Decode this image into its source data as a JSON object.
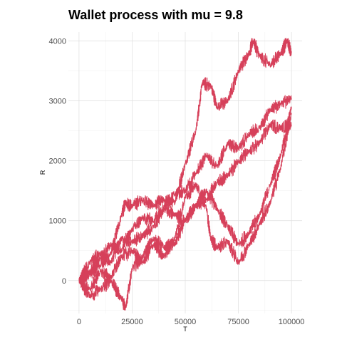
{
  "chart_data": {
    "type": "line",
    "title": "Wallet process with mu =  9.8",
    "xlabel": "T",
    "ylabel": "R",
    "xlim": [
      -5000,
      105000
    ],
    "ylim": [
      -550,
      4150
    ],
    "x_ticks": [
      0,
      25000,
      50000,
      75000,
      100000
    ],
    "x_tick_labels": [
      "0",
      "25000",
      "50000",
      "75000",
      "100000"
    ],
    "y_ticks": [
      0,
      1000,
      2000,
      3000,
      4000
    ],
    "y_tick_labels": [
      "0",
      "1000",
      "2000",
      "3000",
      "4000"
    ],
    "grid": true,
    "legend": "none",
    "line_color": "#d6405a",
    "series": [
      {
        "x": [
          0,
          5000,
          10000,
          15000,
          20000,
          22000,
          25000,
          30000,
          35000,
          40000,
          45000,
          50000,
          55000,
          58000,
          62000,
          65000,
          70000,
          75000,
          80000,
          82000,
          85000,
          90000,
          95000,
          98000,
          100000
        ],
        "values": [
          0,
          100,
          250,
          450,
          1100,
          1300,
          1250,
          1350,
          1250,
          1350,
          1300,
          1950,
          2500,
          3300,
          3250,
          2900,
          3000,
          3500,
          3800,
          4000,
          3750,
          3600,
          3800,
          4000,
          3800
        ]
      },
      {
        "x": [
          0,
          5000,
          10000,
          15000,
          20000,
          22000,
          25000,
          30000,
          35000,
          40000,
          45000,
          50000,
          55000,
          60000,
          65000,
          70000,
          75000,
          80000,
          85000,
          90000,
          95000,
          100000
        ],
        "values": [
          0,
          -250,
          -150,
          0,
          -300,
          -450,
          200,
          400,
          700,
          550,
          600,
          1000,
          1250,
          1500,
          1200,
          900,
          600,
          800,
          1100,
          1600,
          2100,
          2900
        ]
      },
      {
        "x": [
          0,
          5000,
          10000,
          15000,
          20000,
          25000,
          30000,
          35000,
          40000,
          45000,
          50000,
          55000,
          60000,
          62000,
          65000,
          70000,
          75000,
          80000,
          85000,
          90000,
          95000,
          100000
        ],
        "values": [
          0,
          -150,
          150,
          50,
          400,
          500,
          300,
          600,
          400,
          700,
          1400,
          1600,
          1200,
          700,
          550,
          650,
          300,
          600,
          950,
          1300,
          1900,
          2800
        ]
      },
      {
        "x": [
          0,
          5000,
          10000,
          15000,
          20000,
          25000,
          30000,
          35000,
          40000,
          45000,
          50000,
          55000,
          60000,
          65000,
          70000,
          75000,
          80000,
          85000,
          90000,
          95000,
          100000
        ],
        "values": [
          0,
          300,
          450,
          300,
          700,
          650,
          750,
          900,
          1200,
          1100,
          1000,
          1250,
          1350,
          1650,
          1750,
          2000,
          2150,
          2300,
          2600,
          2550,
          2600
        ]
      },
      {
        "x": [
          0,
          5000,
          10000,
          15000,
          20000,
          25000,
          30000,
          35000,
          40000,
          45000,
          50000,
          55000,
          60000,
          65000,
          70000,
          75000,
          80000,
          85000,
          90000,
          95000,
          100000
        ],
        "values": [
          0,
          150,
          350,
          600,
          500,
          850,
          1050,
          1000,
          1250,
          1450,
          1500,
          1800,
          2100,
          1900,
          2300,
          2200,
          2450,
          2550,
          2850,
          2950,
          3050
        ]
      }
    ]
  }
}
